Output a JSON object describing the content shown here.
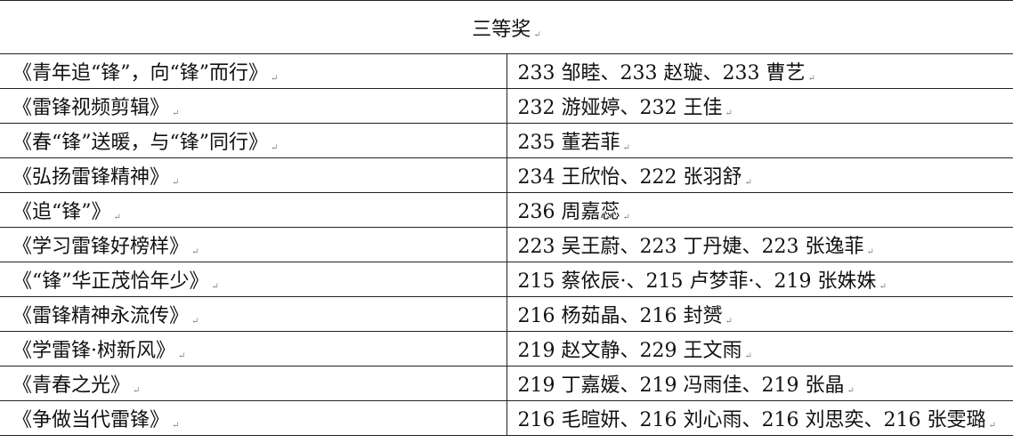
{
  "title": "三等奖",
  "rows": [
    {
      "work": "《青年追“锋”，向“锋”而行》",
      "winners": "233 邹睦、233 赵璇、233 曹艺"
    },
    {
      "work": "《雷锋视频剪辑》",
      "winners": "232 游娅婷、232 王佳"
    },
    {
      "work": "《春“锋”送暖，与“锋”同行》",
      "winners": "235 董若菲"
    },
    {
      "work": "《弘扬雷锋精神》",
      "winners": "234 王欣怡、222 张羽舒"
    },
    {
      "work": "《追“锋”》",
      "winners": "236 周嘉蕊"
    },
    {
      "work": "《学习雷锋好榜样》",
      "winners": "223 吴王蔚、223 丁丹婕、223 张逸菲"
    },
    {
      "work": "《“锋”华正茂恰年少》",
      "winners": "215 蔡依辰·、215 卢梦菲·、219 张姝姝"
    },
    {
      "work": "《雷锋精神永流传》",
      "winners": "216 杨茹晶、216 封赟"
    },
    {
      "work": "《学雷锋·树新风》",
      "winners": "219 赵文静、229 王文雨"
    },
    {
      "work": "《青春之光》",
      "winners": "219 丁嘉媛、219 冯雨佳、219 张晶"
    },
    {
      "work": "《争做当代雷锋》",
      "winners": "216 毛暄妍、216 刘心雨、216 刘思奕、216 张雯璐"
    }
  ]
}
